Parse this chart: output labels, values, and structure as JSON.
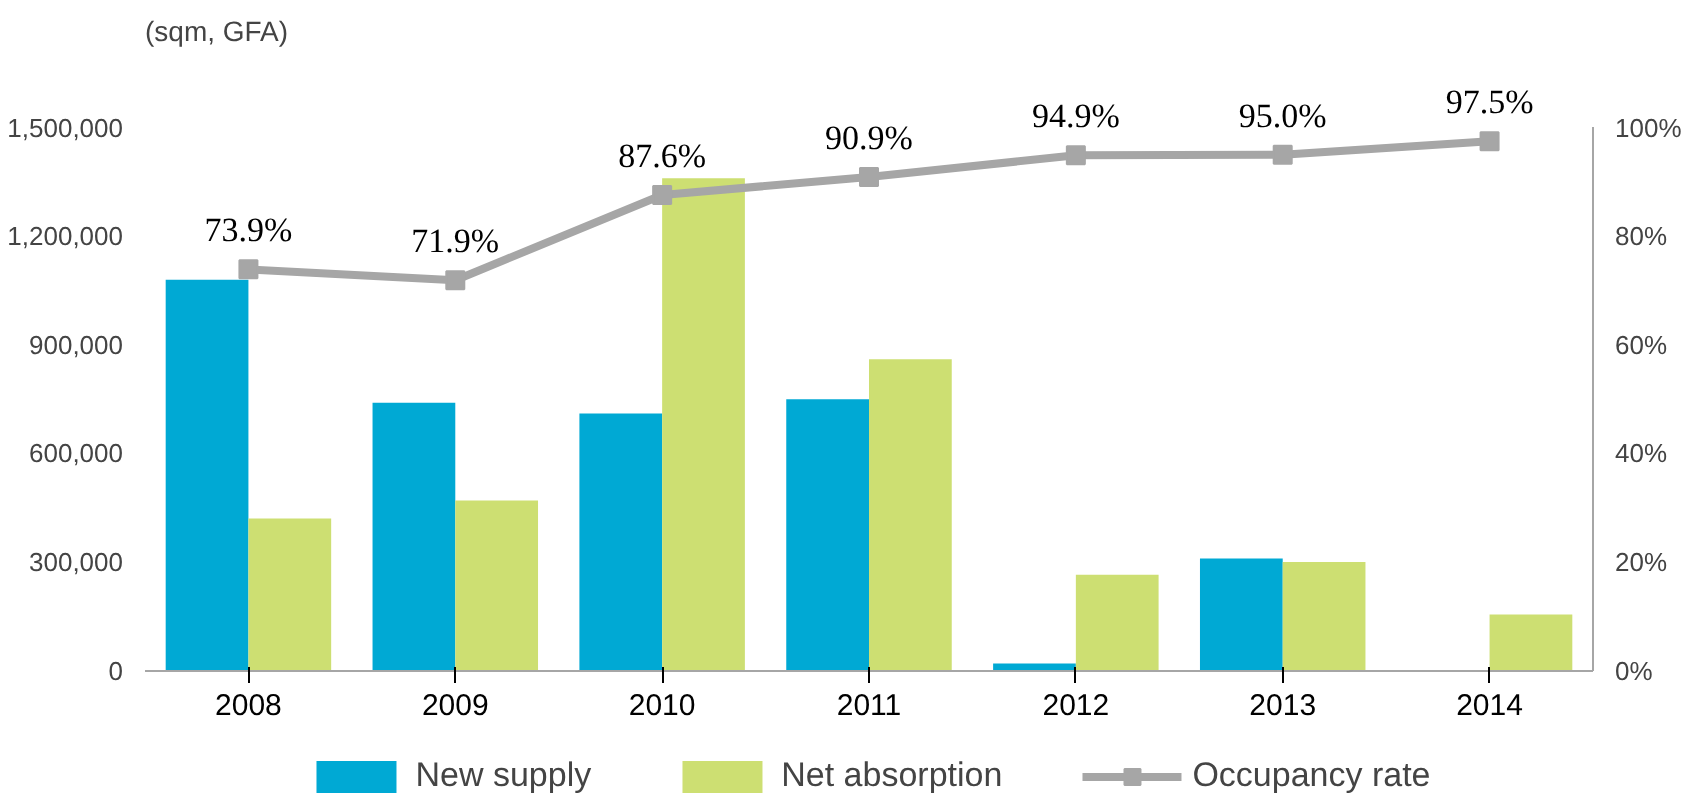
{
  "chart_data": {
    "type": "bar",
    "ylabel": "(sqm, GFA)",
    "categories": [
      "2008",
      "2009",
      "2010",
      "2011",
      "2012",
      "2013",
      "2014"
    ],
    "series": [
      {
        "name": "New supply",
        "color": "#00a9d4",
        "values": [
          1080000,
          740000,
          710000,
          750000,
          20000,
          310000,
          null
        ]
      },
      {
        "name": "Net absorption",
        "color": "#cddf72",
        "values": [
          420000,
          470000,
          1360000,
          860000,
          265000,
          300000,
          155000
        ]
      },
      {
        "name": "Occupancy rate",
        "type": "line",
        "axis": "y2",
        "color": "#a6a6a6",
        "marker": "square",
        "values": [
          73.9,
          71.9,
          87.6,
          90.9,
          94.9,
          95.0,
          97.5
        ],
        "value_labels": [
          "73.9%",
          "71.9%",
          "87.6%",
          "90.9%",
          "94.9%",
          "95.0%",
          "97.5%"
        ]
      }
    ],
    "ylim": [
      0,
      1500000
    ],
    "yticks": [
      {
        "value": 0,
        "label": "0"
      },
      {
        "value": 300000,
        "label": "300,000"
      },
      {
        "value": 600000,
        "label": "600,000"
      },
      {
        "value": 900000,
        "label": "900,000"
      },
      {
        "value": 1200000,
        "label": "1,200,000"
      },
      {
        "value": 1500000,
        "label": "1,500,000"
      }
    ],
    "y2lim": [
      0,
      100
    ],
    "y2ticks": [
      {
        "value": 0,
        "label": "0%"
      },
      {
        "value": 20,
        "label": "20%"
      },
      {
        "value": 40,
        "label": "40%"
      },
      {
        "value": 60,
        "label": "60%"
      },
      {
        "value": 80,
        "label": "80%"
      },
      {
        "value": 100,
        "label": "100%"
      }
    ],
    "grid": false,
    "legend": "bottom"
  }
}
